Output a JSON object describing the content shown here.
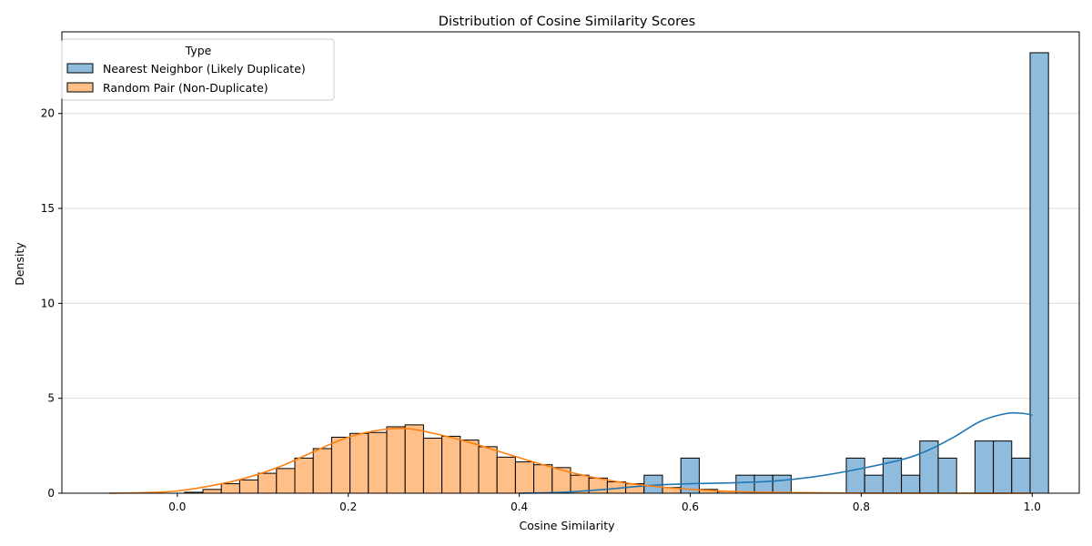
{
  "chart_data": {
    "type": "histogram",
    "title": "Distribution of Cosine Similarity Scores",
    "xlabel": "Cosine Similarity",
    "ylabel": "Density",
    "xlim": [
      -0.135,
      1.055
    ],
    "ylim": [
      0,
      24.3
    ],
    "xticks": [
      0.0,
      0.2,
      0.4,
      0.6,
      0.8,
      1.0
    ],
    "xtick_labels": [
      "0.0",
      "0.2",
      "0.4",
      "0.6",
      "0.8",
      "1.0"
    ],
    "yticks": [
      0,
      5,
      10,
      15,
      20
    ],
    "ytick_labels": [
      "0",
      "5",
      "10",
      "15",
      "20"
    ],
    "grid": "horizontal",
    "legend": {
      "title": "Type",
      "placement": "top-left",
      "entries": [
        "Nearest Neighbor (Likely Duplicate)",
        "Random Pair (Non-Duplicate)"
      ]
    },
    "colors": {
      "nearest_fill": "#8fbcdc",
      "nearest_line": "#1f77b4",
      "random_fill": "#ffbf86",
      "random_line": "#ff7f0e",
      "grid": "#d9d9d9"
    },
    "bin_start": -0.0775,
    "bin_width": 0.0215,
    "series": [
      {
        "name": "Random Pair (Non-Duplicate)",
        "bars": [
          [
            4,
            0.05
          ],
          [
            5,
            0.2
          ],
          [
            6,
            0.5
          ],
          [
            7,
            0.7
          ],
          [
            8,
            1.05
          ],
          [
            9,
            1.3
          ],
          [
            10,
            1.85
          ],
          [
            11,
            2.35
          ],
          [
            12,
            2.95
          ],
          [
            13,
            3.15
          ],
          [
            14,
            3.2
          ],
          [
            15,
            3.5
          ],
          [
            16,
            3.6
          ],
          [
            17,
            2.9
          ],
          [
            18,
            3.0
          ],
          [
            19,
            2.8
          ],
          [
            20,
            2.45
          ],
          [
            21,
            1.9
          ],
          [
            22,
            1.65
          ],
          [
            23,
            1.5
          ],
          [
            24,
            1.35
          ],
          [
            25,
            0.95
          ],
          [
            26,
            0.8
          ],
          [
            27,
            0.6
          ],
          [
            28,
            0.5
          ],
          [
            29,
            0.4
          ],
          [
            30,
            0.3
          ],
          [
            31,
            0.25
          ],
          [
            32,
            0.2
          ],
          [
            33,
            0.1
          ]
        ],
        "kde_x": [
          -0.08,
          -0.04,
          0.0,
          0.04,
          0.08,
          0.12,
          0.16,
          0.2,
          0.24,
          0.27,
          0.3,
          0.34,
          0.38,
          0.42,
          0.46,
          0.5,
          0.54,
          0.58,
          0.62,
          0.66,
          0.7,
          0.8,
          0.9,
          1.0
        ],
        "kde_y": [
          0.0,
          0.03,
          0.12,
          0.4,
          0.8,
          1.4,
          2.2,
          2.95,
          3.35,
          3.4,
          3.15,
          2.7,
          2.15,
          1.6,
          1.1,
          0.72,
          0.45,
          0.27,
          0.15,
          0.08,
          0.04,
          0.01,
          0.0,
          0.0
        ]
      },
      {
        "name": "Nearest Neighbor (Likely Duplicate)",
        "bars": [
          [
            29,
            0.95
          ],
          [
            31,
            1.85
          ],
          [
            34,
            0.95
          ],
          [
            35,
            0.95
          ],
          [
            36,
            0.95
          ],
          [
            40,
            1.85
          ],
          [
            41,
            0.95
          ],
          [
            42,
            1.85
          ],
          [
            43,
            0.95
          ],
          [
            44,
            2.75
          ],
          [
            45,
            1.85
          ],
          [
            47,
            2.75
          ],
          [
            48,
            2.75
          ],
          [
            49,
            1.85
          ],
          [
            50,
            23.2
          ]
        ],
        "kde_x": [
          0.4,
          0.45,
          0.5,
          0.55,
          0.6,
          0.65,
          0.7,
          0.75,
          0.8,
          0.85,
          0.88,
          0.91,
          0.94,
          0.97,
          0.99,
          1.0
        ],
        "kde_y": [
          0.0,
          0.05,
          0.2,
          0.4,
          0.5,
          0.55,
          0.65,
          0.9,
          1.3,
          1.8,
          2.3,
          3.0,
          3.8,
          4.2,
          4.2,
          4.1
        ]
      }
    ]
  }
}
